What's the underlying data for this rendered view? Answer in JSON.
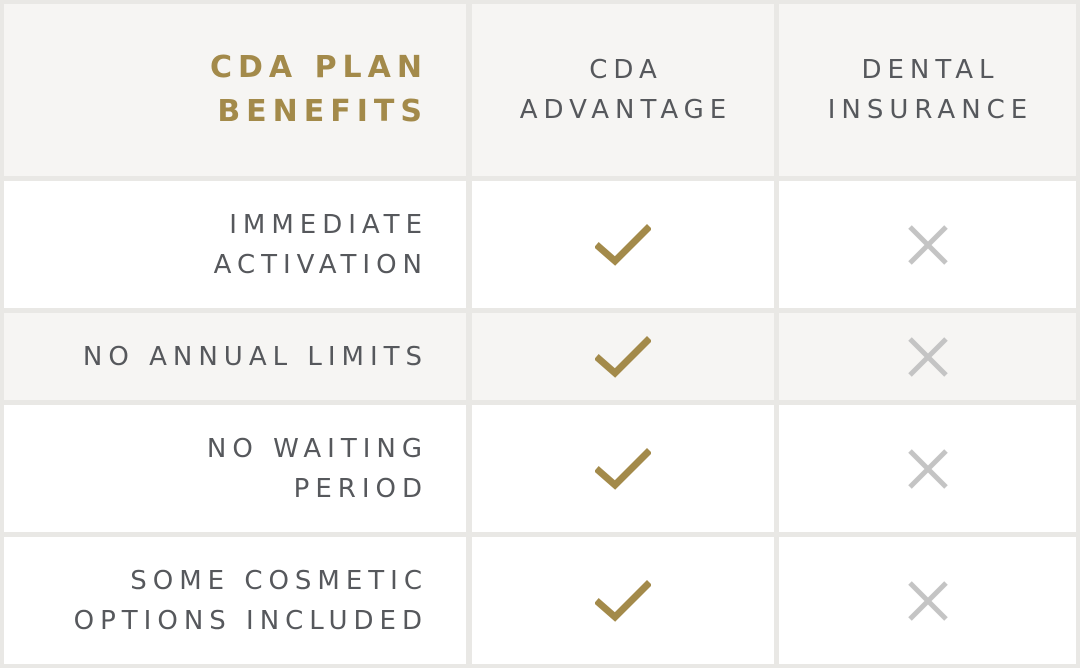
{
  "colors": {
    "gold": "#a38a4a",
    "text": "#56585c",
    "cross": "#c4c4c4",
    "header_bg": "#f6f5f3",
    "row_bg": "#ffffff",
    "gridline": "#e9e8e5"
  },
  "header": {
    "title": "CDA PLAN\nBENEFITS",
    "col1": "CDA\nADVANTAGE",
    "col2": "DENTAL\nINSURANCE"
  },
  "rows": [
    {
      "label": "IMMEDIATE\nACTIVATION",
      "cda_advantage": "check-icon",
      "dental_insurance": "cross-icon"
    },
    {
      "label": "NO ANNUAL LIMITS",
      "cda_advantage": "check-icon",
      "dental_insurance": "cross-icon"
    },
    {
      "label": "NO WAITING\nPERIOD",
      "cda_advantage": "check-icon",
      "dental_insurance": "cross-icon"
    },
    {
      "label": "SOME COSMETIC\nOPTIONS INCLUDED",
      "cda_advantage": "check-icon",
      "dental_insurance": "cross-icon"
    }
  ]
}
